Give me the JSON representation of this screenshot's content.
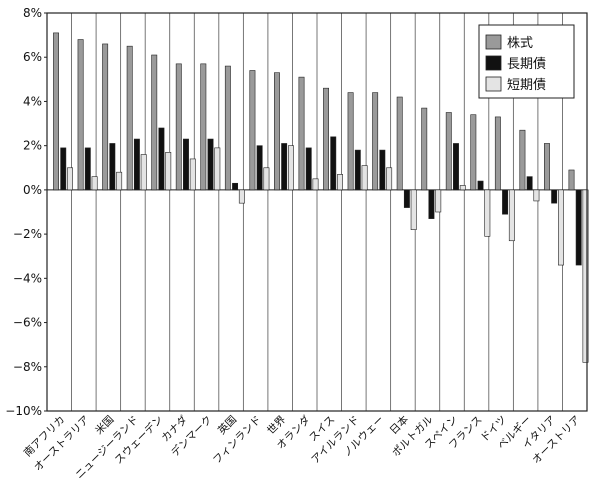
{
  "chart_data": {
    "type": "bar",
    "categories": [
      "南アフリカ",
      "オーストラリア",
      "米国",
      "ニュージーランド",
      "スウェーデン",
      "カナダ",
      "デンマーク",
      "英国",
      "フィンランド",
      "世界",
      "オランダ",
      "スイス",
      "アイルランド",
      "ノルウェー",
      "日本",
      "ポルトガル",
      "スペイン",
      "フランス",
      "ドイツ",
      "ベルギー",
      "イタリア",
      "オーストリア"
    ],
    "series": [
      {
        "name": "株式",
        "color": "#9a9a9a",
        "values": [
          7.1,
          6.8,
          6.6,
          6.5,
          6.1,
          5.7,
          5.7,
          5.6,
          5.4,
          5.3,
          5.1,
          4.6,
          4.4,
          4.4,
          4.2,
          3.7,
          3.5,
          3.4,
          3.3,
          2.7,
          2.1,
          0.9
        ]
      },
      {
        "name": "長期債",
        "color": "#111111",
        "values": [
          1.9,
          1.9,
          2.1,
          2.3,
          2.8,
          2.3,
          2.3,
          0.3,
          2.0,
          2.1,
          1.9,
          2.4,
          1.8,
          1.8,
          -0.8,
          -1.3,
          2.1,
          0.4,
          -1.1,
          0.6,
          -0.6,
          -3.4
        ]
      },
      {
        "name": "短期債",
        "color": "#e4e4e4",
        "values": [
          1.0,
          0.6,
          0.8,
          1.6,
          1.7,
          1.4,
          1.9,
          -0.6,
          1.0,
          2.0,
          0.5,
          0.7,
          1.1,
          1.0,
          -1.8,
          -1.0,
          0.2,
          -2.1,
          -2.3,
          -0.5,
          -3.4,
          -7.8
        ]
      }
    ],
    "y_ticks": [
      "8%",
      "6%",
      "4%",
      "2%",
      "0%",
      "−2%",
      "−4%",
      "−6%",
      "−8%",
      "−10%"
    ],
    "ylim": [
      -10,
      8
    ],
    "grid": "vertical",
    "legend_position": "top-right"
  }
}
